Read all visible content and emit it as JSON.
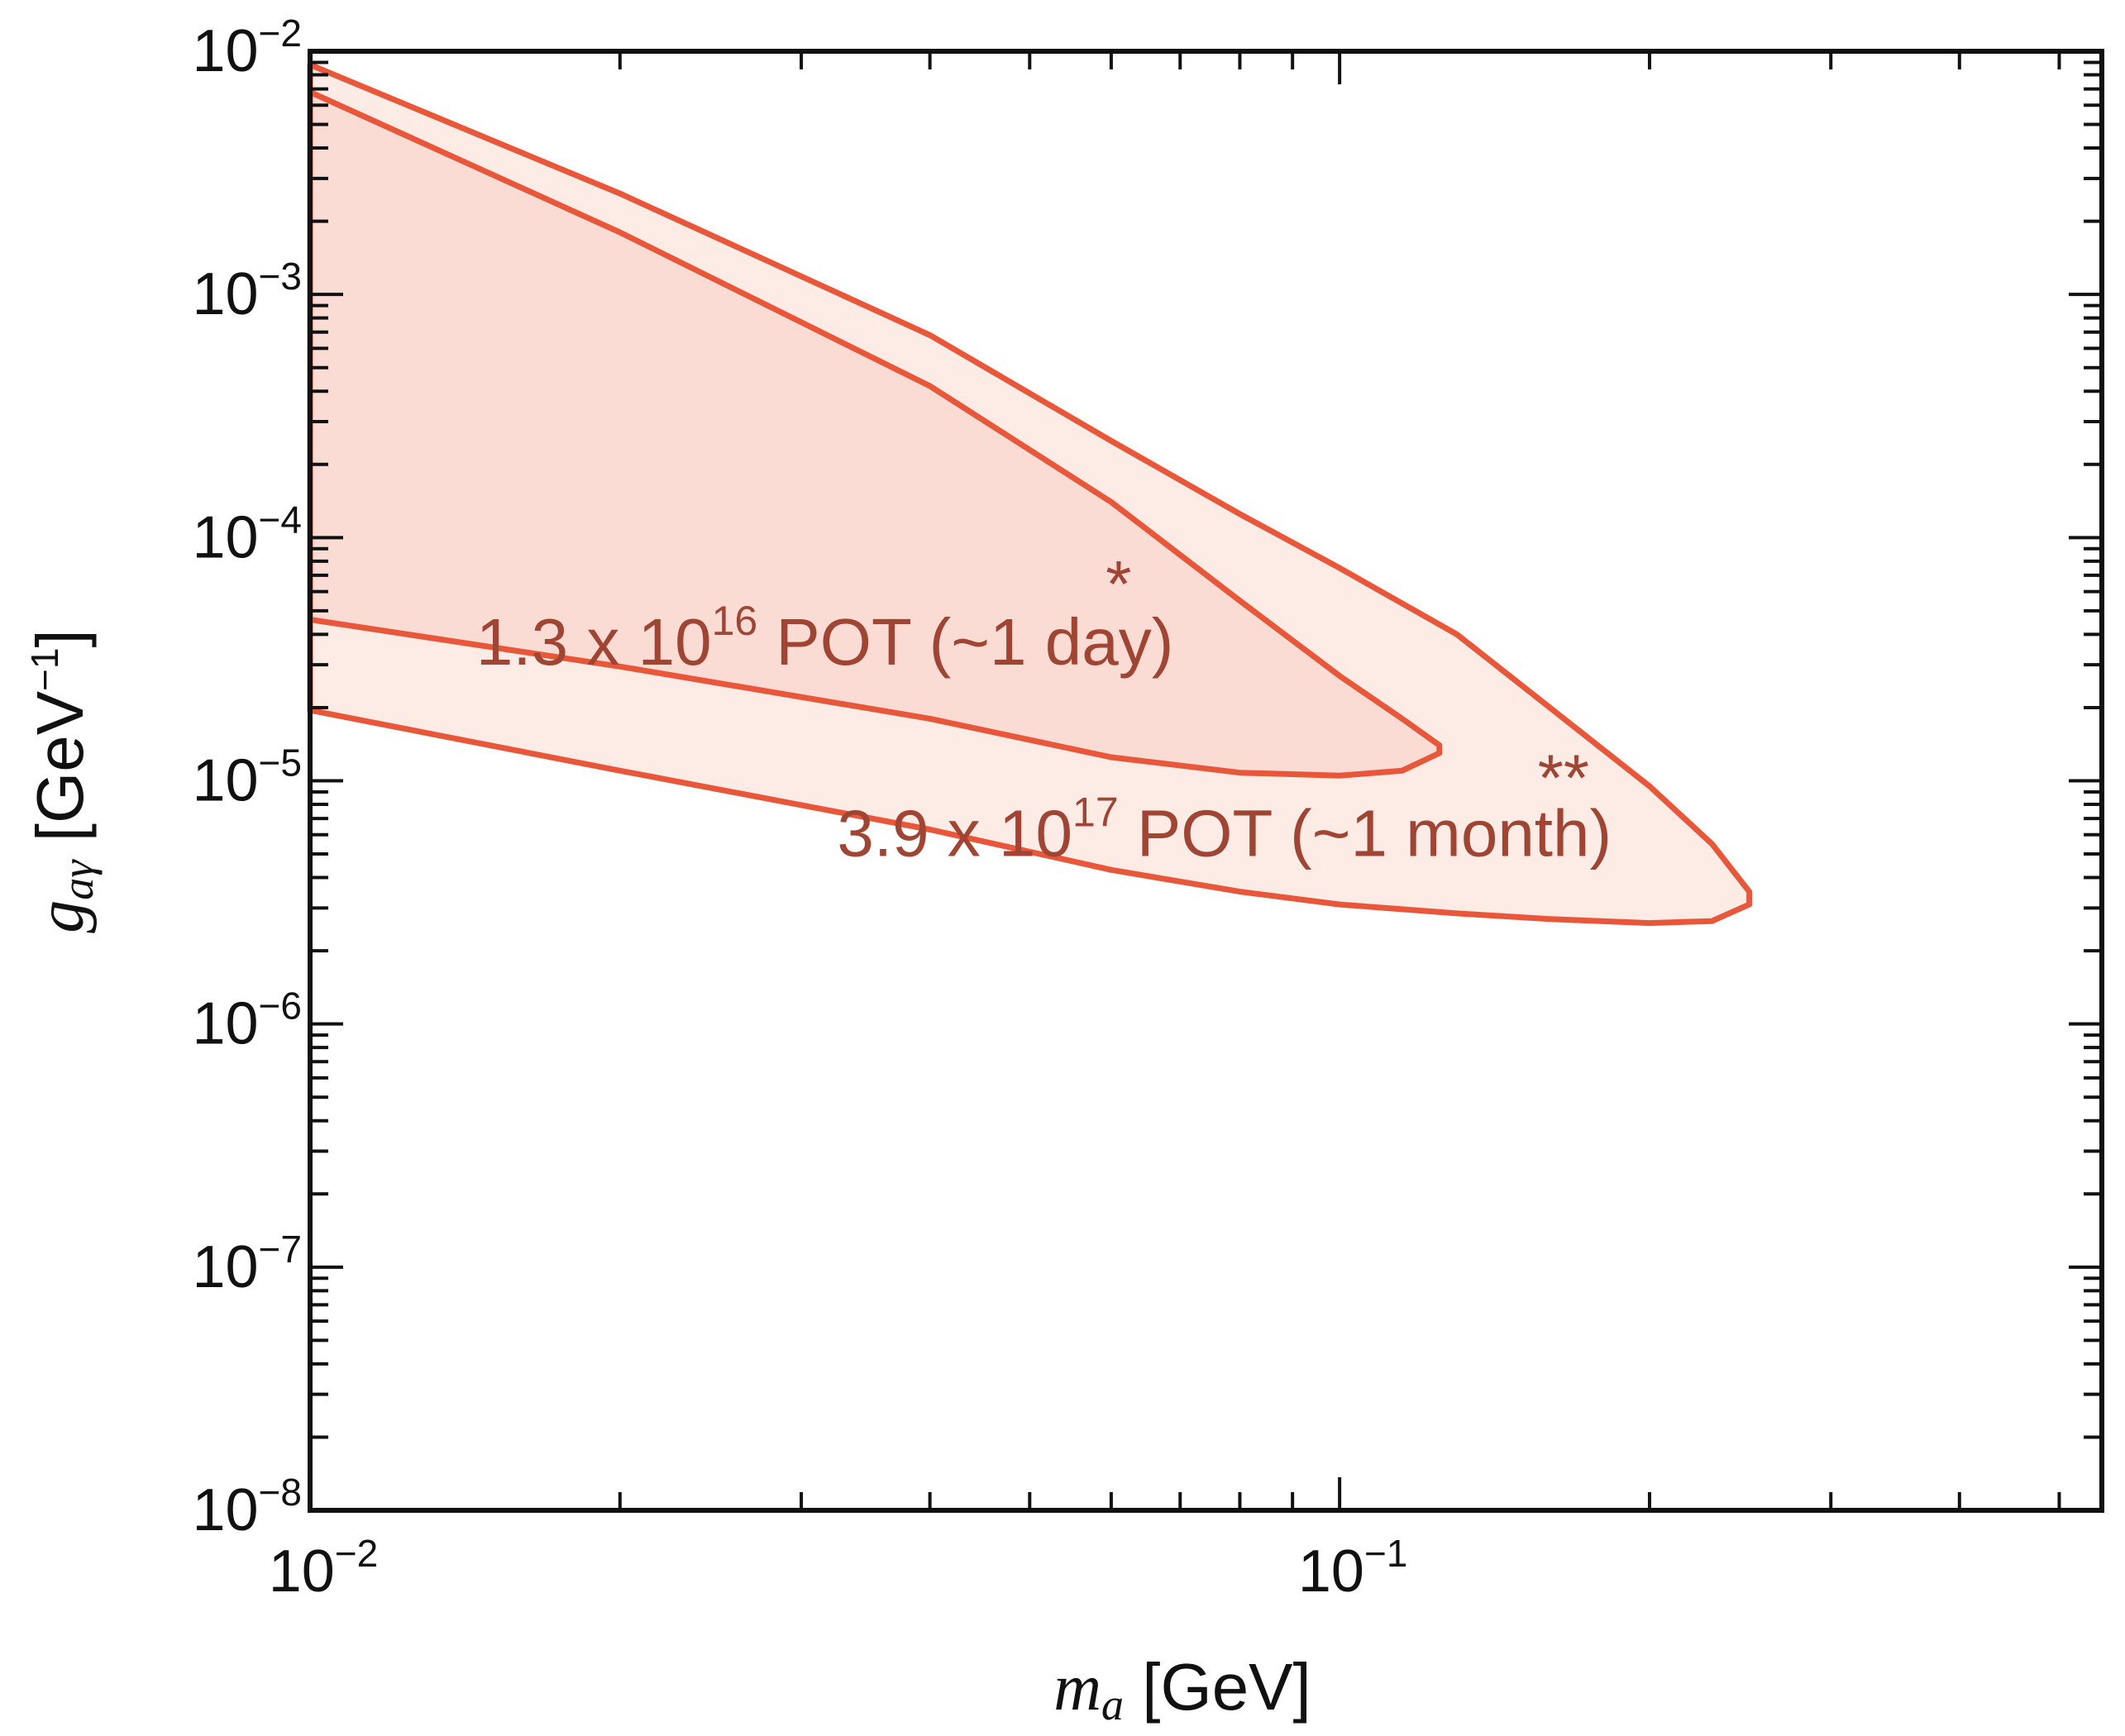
{
  "chart_data": {
    "type": "area",
    "title": "",
    "xlabel": {
      "symbol": "m",
      "subscript": "a",
      "unit": "[GeV]"
    },
    "ylabel": {
      "symbol": "g",
      "subscript": "aγ",
      "unit_text": "[GeV",
      "unit_exp": "−1",
      "unit_close": "]"
    },
    "xscale": "log",
    "yscale": "log",
    "xlim": [
      0.01,
      0.55
    ],
    "ylim": [
      1e-08,
      0.01
    ],
    "x_ticks": [
      {
        "value": 0.01,
        "base": "10",
        "exp": "−2"
      },
      {
        "value": 0.1,
        "base": "10",
        "exp": "−1"
      }
    ],
    "y_ticks": [
      {
        "value": 0.01,
        "base": "10",
        "exp": "−2"
      },
      {
        "value": 0.001,
        "base": "10",
        "exp": "−3"
      },
      {
        "value": 0.0001,
        "base": "10",
        "exp": "−4"
      },
      {
        "value": 1e-05,
        "base": "10",
        "exp": "−5"
      },
      {
        "value": 1e-06,
        "base": "10",
        "exp": "−6"
      },
      {
        "value": 1e-07,
        "base": "10",
        "exp": "−7"
      },
      {
        "value": 1e-08,
        "base": "10",
        "exp": "−8"
      }
    ],
    "colors": {
      "line": "#e8573a",
      "fill_day": "#fadcd5",
      "fill_month": "#fdebe6",
      "annotation": "#a04433"
    },
    "series": [
      {
        "name": "3.9 x 10^17 POT (~1 month)",
        "upper": [
          [
            0.01,
            0.0088
          ],
          [
            0.02,
            0.0026
          ],
          [
            0.04,
            0.00068
          ],
          [
            0.06,
            0.00025
          ],
          [
            0.08,
            0.000125
          ],
          [
            0.1,
            7.5e-05
          ],
          [
            0.13,
            4e-05
          ],
          [
            0.16,
            2e-05
          ],
          [
            0.2,
            9.5e-06
          ],
          [
            0.23,
            5.5e-06
          ],
          [
            0.25,
            3.5e-06
          ]
        ],
        "lower": [
          [
            0.01,
            1.95e-05
          ],
          [
            0.02,
            1.1e-05
          ],
          [
            0.04,
            6.3e-06
          ],
          [
            0.06,
            4.3e-06
          ],
          [
            0.08,
            3.5e-06
          ],
          [
            0.1,
            3.1e-06
          ],
          [
            0.13,
            2.85e-06
          ],
          [
            0.16,
            2.7e-06
          ],
          [
            0.2,
            2.6e-06
          ],
          [
            0.23,
            2.65e-06
          ],
          [
            0.25,
            3.1e-06
          ]
        ]
      },
      {
        "name": "1.3 x 10^16 POT (~1 day)",
        "upper": [
          [
            0.01,
            0.0068
          ],
          [
            0.02,
            0.0018
          ],
          [
            0.04,
            0.00042
          ],
          [
            0.06,
            0.00014
          ],
          [
            0.08,
            5.5e-05
          ],
          [
            0.1,
            2.7e-05
          ],
          [
            0.115,
            1.8e-05
          ],
          [
            0.125,
            1.4e-05
          ]
        ],
        "lower": [
          [
            0.01,
            4.6e-05
          ],
          [
            0.02,
            2.95e-05
          ],
          [
            0.04,
            1.8e-05
          ],
          [
            0.06,
            1.25e-05
          ],
          [
            0.08,
            1.08e-05
          ],
          [
            0.1,
            1.05e-05
          ],
          [
            0.115,
            1.1e-05
          ],
          [
            0.125,
            1.3e-05
          ]
        ]
      }
    ],
    "annotations": [
      {
        "id": "day",
        "base": "1.3 x 10",
        "exp": "16",
        "rest": "POT (~1 day)",
        "x": 0.0145,
        "y": 3e-05
      },
      {
        "id": "month",
        "base": "3.9 x 10",
        "exp": "17",
        "rest": "POT (~1 month)",
        "x": 0.0325,
        "y": 4.9e-06
      },
      {
        "id": "star1",
        "text": "*",
        "x": 0.061,
        "y": 5.2e-05
      },
      {
        "id": "star2",
        "text": "**",
        "x": 0.165,
        "y": 8.3e-06
      }
    ]
  }
}
